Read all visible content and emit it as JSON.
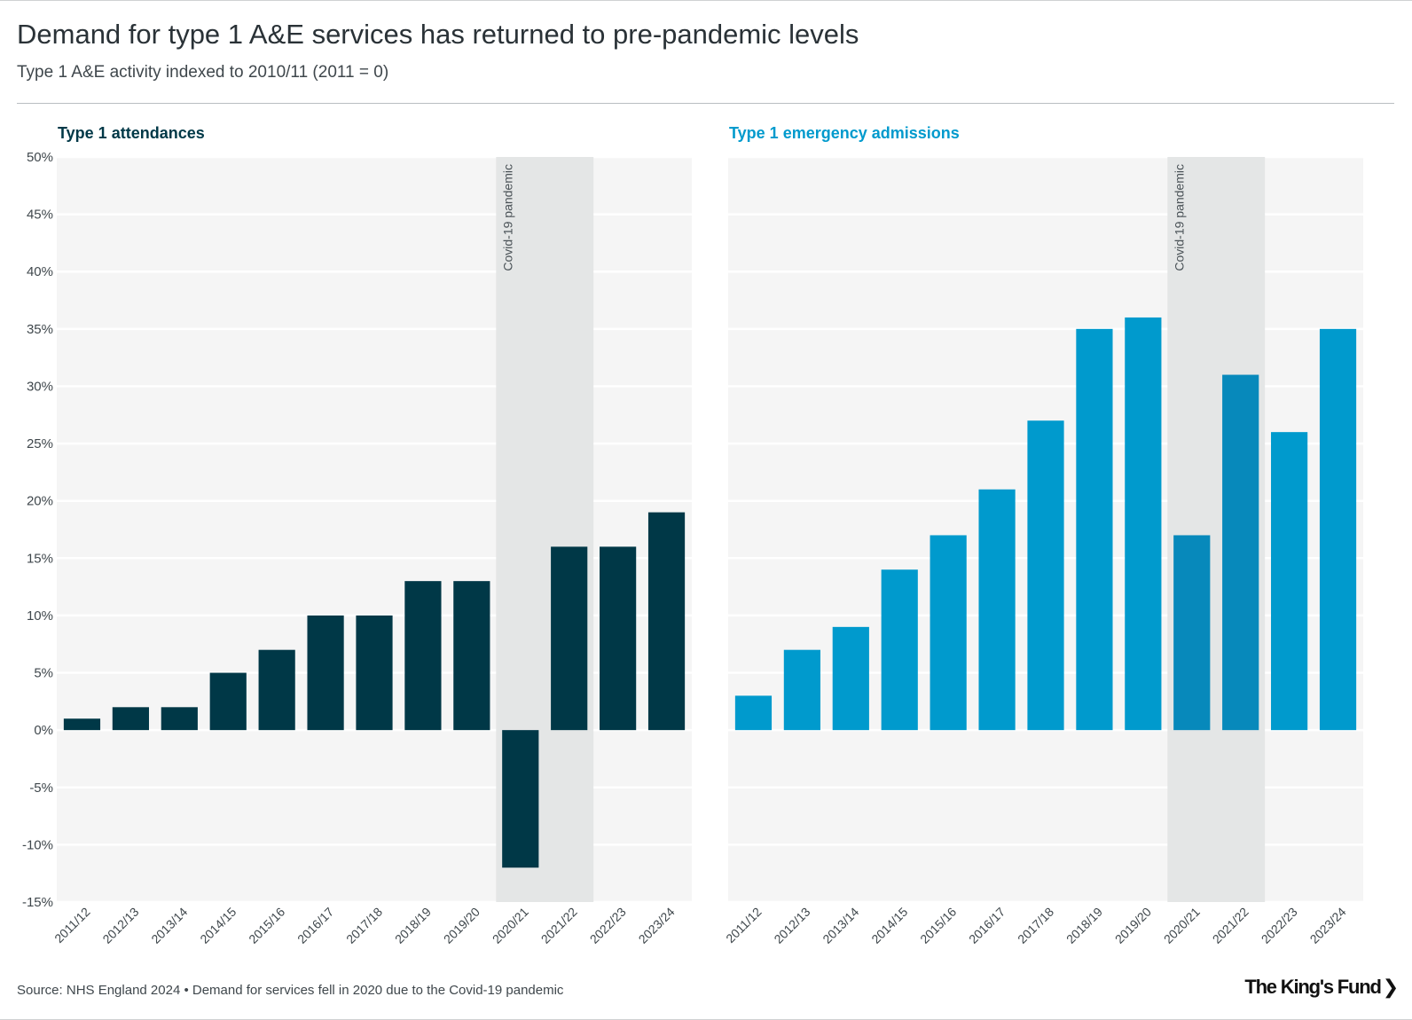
{
  "header": {
    "title": "Demand for type 1 A&E services has returned to pre-pandemic levels",
    "subtitle": "Type 1 A&E activity indexed to 2010/11 (2011 = 0)"
  },
  "footer": {
    "source": "Source: NHS England 2024 • Demand for services fell in 2020 due to the Covid-19 pandemic",
    "logo_text": "The King's Fund",
    "logo_chevron": "❯"
  },
  "colors": {
    "background": "#ffffff",
    "plot_background": "#f5f5f5",
    "gridline": "#ffffff",
    "covid_band": "#e4e6e6",
    "attendances": "#003847",
    "attendances_covid": "#003847",
    "admissions": "#009acd",
    "admissions_covid": "#0789bb",
    "tick_text": "#3f474c"
  },
  "chart_data": [
    {
      "type": "bar",
      "title": "Type 1 attendances",
      "title_color": "#003847",
      "xlabel": "",
      "ylabel": "",
      "categories": [
        "2011/12",
        "2012/13",
        "2013/14",
        "2014/15",
        "2015/16",
        "2016/17",
        "2017/18",
        "2018/19",
        "2019/20",
        "2020/21",
        "2021/22",
        "2022/23",
        "2023/24"
      ],
      "values": [
        1,
        2,
        2,
        5,
        7,
        10,
        10,
        13,
        13,
        -12,
        16,
        16,
        19
      ],
      "ylim": [
        -15,
        50
      ],
      "yticks": [
        50,
        45,
        40,
        35,
        30,
        25,
        20,
        15,
        10,
        5,
        0,
        -5,
        -10,
        -15
      ],
      "ytick_labels": [
        "50%",
        "45%",
        "40%",
        "35%",
        "30%",
        "25%",
        "20%",
        "15%",
        "10%",
        "5%",
        "0%",
        "-5%",
        "-10%",
        "-15%"
      ],
      "grid": true,
      "annotation": {
        "label": "Covid-19 pandemic",
        "start_category": "2020/21",
        "end_category": "2021/22"
      }
    },
    {
      "type": "bar",
      "title": "Type 1 emergency admissions",
      "title_color": "#009acd",
      "xlabel": "",
      "ylabel": "",
      "categories": [
        "2011/12",
        "2012/13",
        "2013/14",
        "2014/15",
        "2015/16",
        "2016/17",
        "2017/18",
        "2018/19",
        "2019/20",
        "2020/21",
        "2021/22",
        "2022/23",
        "2023/24"
      ],
      "values": [
        3,
        7,
        9,
        14,
        17,
        21,
        27,
        35,
        36,
        17,
        31,
        26,
        35
      ],
      "ylim": [
        -15,
        50
      ],
      "grid": true,
      "annotation": {
        "label": "Covid-19 pandemic",
        "start_category": "2020/21",
        "end_category": "2021/22"
      }
    }
  ]
}
